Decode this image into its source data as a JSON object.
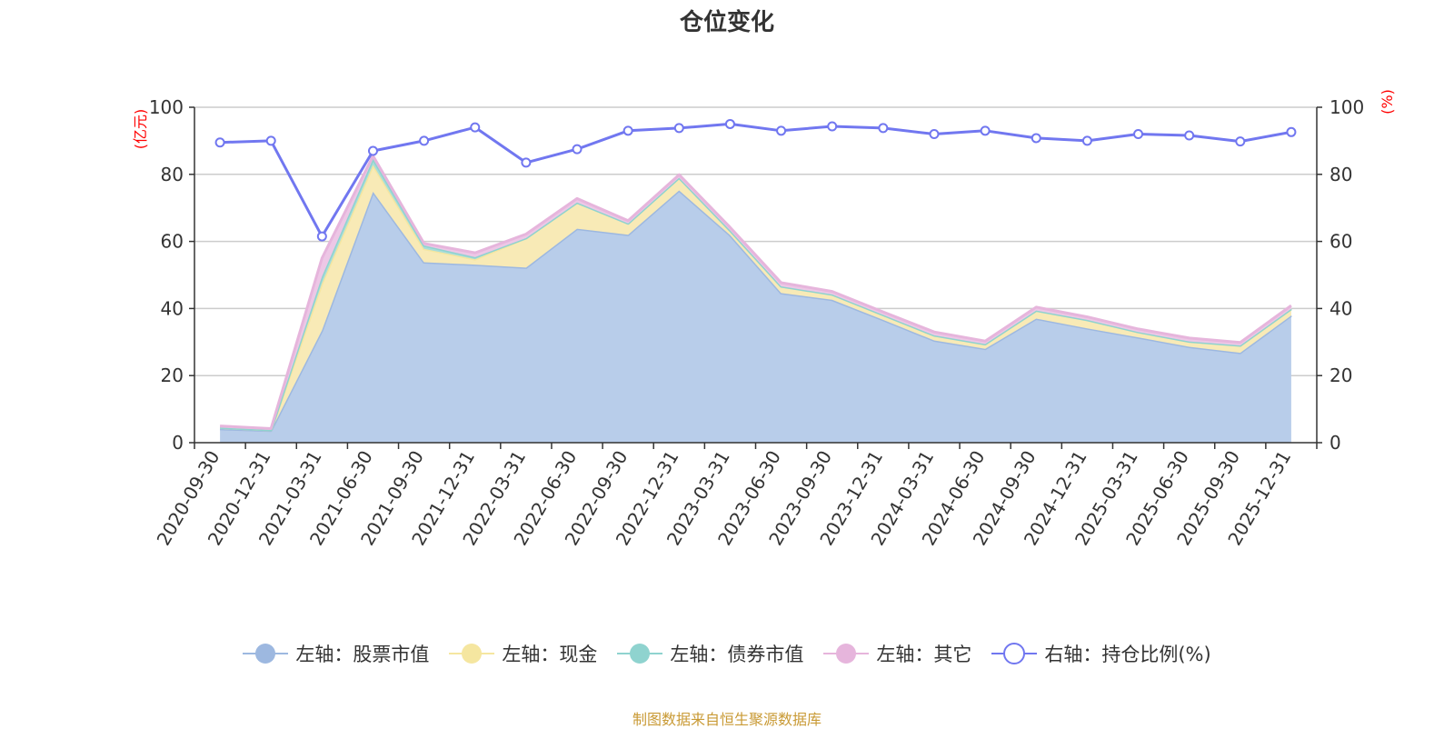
{
  "title": "仓位变化",
  "source": "制图数据来自恒生聚源数据库",
  "chart_data": {
    "type": "area",
    "categories": [
      "2020-09-30",
      "2020-12-31",
      "2021-03-31",
      "2021-06-30",
      "2021-09-30",
      "2021-12-31",
      "2022-03-31",
      "2022-06-30",
      "2022-09-30",
      "2022-12-31",
      "2023-03-31",
      "2023-06-30",
      "2023-09-30",
      "2023-12-31",
      "2024-03-31",
      "2024-06-30",
      "2024-09-30",
      "2024-12-31",
      "2025-03-31",
      "2025-06-30",
      "2025-09-30",
      "2025-12-31"
    ],
    "left_axis": {
      "unit": "(亿元)",
      "ylim": [
        0,
        100
      ],
      "ticks": [
        0,
        20,
        40,
        60,
        80,
        100
      ]
    },
    "right_axis": {
      "unit": "(%)",
      "ylim": [
        0,
        100
      ],
      "ticks": [
        0,
        20,
        40,
        60,
        80,
        100
      ]
    },
    "grid": true,
    "legend_position": "bottom",
    "series": [
      {
        "name": "左轴：股票市值",
        "axis": "left",
        "stack": true,
        "color": "#9db8e0",
        "fill": "#b8cdea",
        "values": [
          4.1,
          3.6,
          33.5,
          74.8,
          53.8,
          53.1,
          52.2,
          63.8,
          62.0,
          75.2,
          61.9,
          44.6,
          42.6,
          36.6,
          30.5,
          28.0,
          37.0,
          34.1,
          31.4,
          28.6,
          26.8,
          37.9
        ]
      },
      {
        "name": "左轴：现金",
        "axis": "left",
        "stack": true,
        "color": "#f5e6a0",
        "fill": "#f8eab6",
        "values": [
          0.4,
          0.2,
          14.0,
          8.0,
          4.0,
          1.6,
          8.8,
          7.8,
          3.4,
          3.8,
          1.4,
          2.0,
          1.6,
          1.5,
          1.5,
          1.4,
          2.4,
          2.5,
          1.6,
          1.6,
          2.2,
          2.0
        ]
      },
      {
        "name": "左轴：债券市值",
        "axis": "left",
        "stack": true,
        "color": "#8fd3cf",
        "fill": "#a9ddd9",
        "values": [
          0.0,
          0.0,
          2.0,
          1.8,
          1.0,
          0.6,
          0.0,
          0.0,
          0.0,
          0.0,
          0.0,
          0.0,
          0.0,
          0.0,
          0.0,
          0.0,
          0.0,
          0.0,
          0.0,
          0.0,
          0.0,
          0.0
        ]
      },
      {
        "name": "左轴：其它",
        "axis": "left",
        "stack": true,
        "color": "#e6b5dc",
        "fill": "#edc7e6",
        "values": [
          0.5,
          0.4,
          5.5,
          0.9,
          0.6,
          1.3,
          1.2,
          1.2,
          0.8,
          0.9,
          0.9,
          1.1,
          0.9,
          0.9,
          1.0,
          0.9,
          1.0,
          0.9,
          0.9,
          1.0,
          0.9,
          1.0
        ]
      },
      {
        "name": "右轴：持仓比例(%)",
        "axis": "right",
        "stack": false,
        "color": "#7177f0",
        "values": [
          89.5,
          90.0,
          61.5,
          87.0,
          90.0,
          94.0,
          83.5,
          87.5,
          93.0,
          93.8,
          95.0,
          93.0,
          94.3,
          93.8,
          92.0,
          93.0,
          90.8,
          90.0,
          92.0,
          91.6,
          89.8,
          92.6
        ]
      }
    ]
  }
}
